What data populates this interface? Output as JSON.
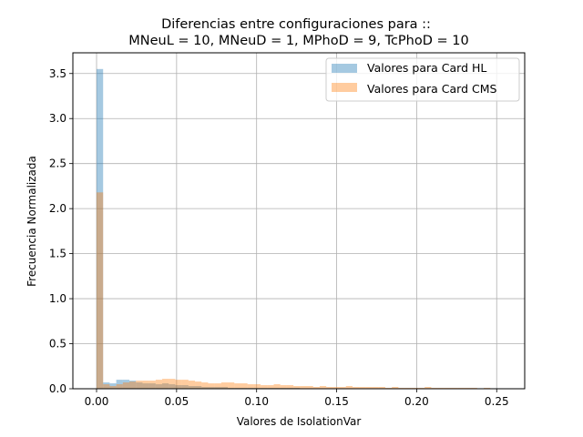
{
  "chart_data": {
    "type": "bar",
    "title_line1": "Diferencias entre configuraciones para ::",
    "title_line2": "MNeuL = 10, MNeuD = 1, MPhoD = 9, TcPhoD = 10",
    "xlabel": "Valores de IsolationVar",
    "ylabel": "Frecuencia Normalizada",
    "xlim": [
      -0.0148,
      0.2675
    ],
    "ylim": [
      0,
      3.73
    ],
    "xticks": [
      0.0,
      0.05,
      0.1,
      0.15,
      0.2,
      0.25
    ],
    "xtick_labels": [
      "0.00",
      "0.05",
      "0.10",
      "0.15",
      "0.20",
      "0.25"
    ],
    "yticks": [
      0.0,
      0.5,
      1.0,
      1.5,
      2.0,
      2.5,
      3.0,
      3.5
    ],
    "ytick_labels": [
      "0.0",
      "0.5",
      "1.0",
      "1.5",
      "2.0",
      "2.5",
      "3.0",
      "3.5"
    ],
    "grid": true,
    "legend_position": "top-right",
    "series": [
      {
        "name": "Valores para Card HL",
        "color": "#1f77b4",
        "opacity": 0.4,
        "bin_start": 0.0,
        "bin_width": 0.0041,
        "values": [
          3.55,
          0.07,
          0.06,
          0.1,
          0.1,
          0.09,
          0.07,
          0.06,
          0.06,
          0.05,
          0.06,
          0.05,
          0.04,
          0.04,
          0.03,
          0.03,
          0.02,
          0.02,
          0.02,
          0.02,
          0.01,
          0.01,
          0.01,
          0.01,
          0.01,
          0.01,
          0.01,
          0.01,
          0.01,
          0.01,
          0.01,
          0.005,
          0.005,
          0.005,
          0.005,
          0.005,
          0.005,
          0.005,
          0.005,
          0.005
        ]
      },
      {
        "name": "Valores para Card CMS",
        "color": "#ff7f0e",
        "opacity": 0.4,
        "bin_start": 0.0,
        "bin_width": 0.0041,
        "values": [
          2.18,
          0.05,
          0.03,
          0.05,
          0.07,
          0.08,
          0.09,
          0.09,
          0.09,
          0.1,
          0.11,
          0.11,
          0.1,
          0.1,
          0.09,
          0.08,
          0.07,
          0.06,
          0.06,
          0.07,
          0.07,
          0.06,
          0.06,
          0.05,
          0.05,
          0.04,
          0.04,
          0.05,
          0.04,
          0.04,
          0.03,
          0.03,
          0.03,
          0.02,
          0.03,
          0.02,
          0.02,
          0.02,
          0.03,
          0.02,
          0.02,
          0.02,
          0.02,
          0.02,
          0.01,
          0.02,
          0.01,
          0.01,
          0.01,
          0.01,
          0.02,
          0.01,
          0.01,
          0.01,
          0.01,
          0.01,
          0.01,
          0.01,
          0.005,
          0.01,
          0.005,
          0.005
        ]
      }
    ]
  }
}
